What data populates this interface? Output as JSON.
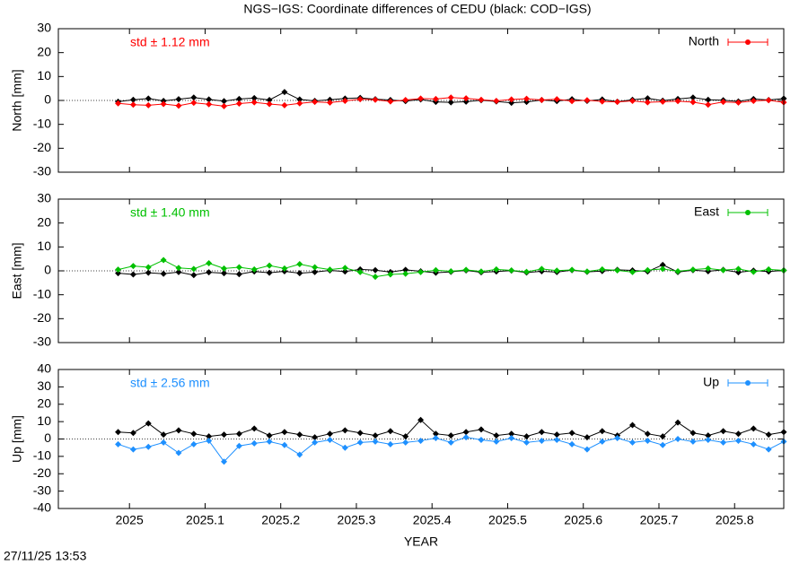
{
  "title": "NGS−IGS: Coordinate differences of CEDU (black: COD−IGS)",
  "footer": "27/11/25 13:53",
  "chart_data": [
    {
      "type": "line",
      "ylabel": "North [mm]",
      "annotation": "std ± 1.12 mm",
      "legend": "upper right",
      "xlim": [
        2024.906,
        2025.865
      ],
      "xticks": [
        2025,
        2025.1,
        2025.2,
        2025.3,
        2025.4,
        2025.5,
        2025.6,
        2025.7,
        2025.8
      ],
      "ylim": [
        -30,
        30
      ],
      "yticks": [
        -30,
        -20,
        -10,
        0,
        10,
        20,
        30
      ],
      "x": [
        2024.985,
        2025.005,
        2025.025,
        2025.045,
        2025.065,
        2025.085,
        2025.105,
        2025.125,
        2025.145,
        2025.165,
        2025.185,
        2025.205,
        2025.225,
        2025.245,
        2025.265,
        2025.285,
        2025.305,
        2025.325,
        2025.345,
        2025.365,
        2025.385,
        2025.405,
        2025.425,
        2025.445,
        2025.465,
        2025.485,
        2025.505,
        2025.525,
        2025.545,
        2025.565,
        2025.585,
        2025.605,
        2025.625,
        2025.645,
        2025.665,
        2025.685,
        2025.705,
        2025.725,
        2025.745,
        2025.765,
        2025.785,
        2025.805,
        2025.825,
        2025.845,
        2025.865
      ],
      "series": [
        {
          "color": "#000000",
          "values": [
            -0.5,
            0.3,
            0.8,
            -0.2,
            0.5,
            1.2,
            0.4,
            -0.3,
            0.6,
            1.0,
            0.2,
            3.5,
            0.4,
            -0.2,
            0.3,
            0.8,
            1.1,
            0.5,
            0.2,
            -0.3,
            0.4,
            -0.6,
            -0.8,
            -0.5,
            0.1,
            -0.4,
            -1.0,
            -0.6,
            0.2,
            -0.3,
            0.5,
            -0.2,
            0.4,
            -0.5,
            0.3,
            0.9,
            -0.1,
            0.6,
            1.2,
            0.3,
            0.1,
            -0.4,
            0.6,
            0.2,
            0.8
          ]
        },
        {
          "name": "North",
          "color": "#ff0000",
          "values": [
            -1.2,
            -1.8,
            -2.0,
            -1.5,
            -2.2,
            -1.0,
            -1.6,
            -2.4,
            -1.3,
            -0.8,
            -1.5,
            -2.0,
            -1.2,
            -0.6,
            -0.9,
            -0.2,
            0.5,
            0.3,
            -0.4,
            0.2,
            0.8,
            0.6,
            1.2,
            0.9,
            0.3,
            -0.2,
            0.4,
            0.7,
            0.2,
            0.5,
            -0.3,
            0.1,
            -0.4,
            -0.6,
            -0.2,
            -0.8,
            -0.5,
            -0.3,
            -0.7,
            -1.8,
            -0.6,
            -0.9,
            -0.2,
            0.1,
            -0.8
          ]
        }
      ]
    },
    {
      "type": "line",
      "ylabel": "East [mm]",
      "annotation": "std ± 1.40 mm",
      "legend": "upper right",
      "xlim": [
        2024.906,
        2025.865
      ],
      "xticks": [
        2025,
        2025.1,
        2025.2,
        2025.3,
        2025.4,
        2025.5,
        2025.6,
        2025.7,
        2025.8
      ],
      "ylim": [
        -30,
        30
      ],
      "yticks": [
        -30,
        -20,
        -10,
        0,
        10,
        20,
        30
      ],
      "x": [
        2024.985,
        2025.005,
        2025.025,
        2025.045,
        2025.065,
        2025.085,
        2025.105,
        2025.125,
        2025.145,
        2025.165,
        2025.185,
        2025.205,
        2025.225,
        2025.245,
        2025.265,
        2025.285,
        2025.305,
        2025.325,
        2025.345,
        2025.365,
        2025.385,
        2025.405,
        2025.425,
        2025.445,
        2025.465,
        2025.485,
        2025.505,
        2025.525,
        2025.545,
        2025.565,
        2025.585,
        2025.605,
        2025.625,
        2025.645,
        2025.665,
        2025.685,
        2025.705,
        2025.725,
        2025.745,
        2025.765,
        2025.785,
        2025.805,
        2025.825,
        2025.845,
        2025.865
      ],
      "series": [
        {
          "color": "#000000",
          "values": [
            -1.0,
            -1.5,
            -0.8,
            -1.2,
            -0.5,
            -1.8,
            -0.6,
            -1.0,
            -1.4,
            -0.3,
            -0.8,
            -0.2,
            -1.0,
            -0.5,
            0.2,
            -0.3,
            0.6,
            0.3,
            -0.5,
            0.4,
            -0.2,
            -0.8,
            -0.4,
            0.2,
            -0.6,
            -0.3,
            0.1,
            -0.7,
            -0.2,
            -0.5,
            0.3,
            -0.4,
            -0.1,
            0.4,
            0.2,
            -0.3,
            2.5,
            -0.5,
            0.3,
            -0.2,
            0.4,
            -0.6,
            0.1,
            -0.3,
            0.2
          ]
        },
        {
          "name": "East",
          "color": "#00c000",
          "values": [
            0.5,
            2.0,
            1.5,
            4.5,
            1.2,
            0.8,
            3.2,
            1.0,
            1.5,
            0.6,
            2.2,
            1.0,
            2.8,
            1.5,
            0.5,
            1.2,
            -0.5,
            -2.5,
            -1.5,
            -1.2,
            -0.5,
            0.3,
            -0.2,
            0.4,
            -0.3,
            0.6,
            0.2,
            -0.4,
            0.8,
            0.1,
            0.4,
            -0.3,
            0.6,
            0.2,
            -0.5,
            0.3,
            0.8,
            -0.2,
            0.5,
            1.0,
            0.3,
            0.8,
            -0.4,
            0.6,
            0.2
          ]
        }
      ]
    },
    {
      "type": "line",
      "ylabel": "Up [mm]",
      "xlabel": "YEAR",
      "annotation": "std ± 2.56 mm",
      "legend": "upper right",
      "xlim": [
        2024.906,
        2025.865
      ],
      "xticks": [
        2025,
        2025.1,
        2025.2,
        2025.3,
        2025.4,
        2025.5,
        2025.6,
        2025.7,
        2025.8
      ],
      "ylim": [
        -40,
        40
      ],
      "yticks": [
        -40,
        -30,
        -20,
        -10,
        0,
        10,
        20,
        30,
        40
      ],
      "x": [
        2024.985,
        2025.005,
        2025.025,
        2025.045,
        2025.065,
        2025.085,
        2025.105,
        2025.125,
        2025.145,
        2025.165,
        2025.185,
        2025.205,
        2025.225,
        2025.245,
        2025.265,
        2025.285,
        2025.305,
        2025.325,
        2025.345,
        2025.365,
        2025.385,
        2025.405,
        2025.425,
        2025.445,
        2025.465,
        2025.485,
        2025.505,
        2025.525,
        2025.545,
        2025.565,
        2025.585,
        2025.605,
        2025.625,
        2025.645,
        2025.665,
        2025.685,
        2025.705,
        2025.725,
        2025.745,
        2025.765,
        2025.785,
        2025.805,
        2025.825,
        2025.845,
        2025.865
      ],
      "series": [
        {
          "color": "#000000",
          "values": [
            4.0,
            3.5,
            9.0,
            2.5,
            5.0,
            3.0,
            1.5,
            2.5,
            3.0,
            6.0,
            2.0,
            4.0,
            2.5,
            1.0,
            3.0,
            5.0,
            3.5,
            2.0,
            4.5,
            1.5,
            11.0,
            3.0,
            2.0,
            4.0,
            5.5,
            2.0,
            3.0,
            1.5,
            4.0,
            2.5,
            3.5,
            1.0,
            4.5,
            2.0,
            8.0,
            3.0,
            1.5,
            9.5,
            3.5,
            2.0,
            4.5,
            3.0,
            6.0,
            2.5,
            4.0
          ]
        },
        {
          "name": "Up",
          "color": "#1e90ff",
          "values": [
            -3.0,
            -6.0,
            -4.5,
            -2.0,
            -8.0,
            -3.0,
            -1.0,
            -13.0,
            -4.0,
            -2.5,
            -1.5,
            -3.5,
            -9.0,
            -2.0,
            -0.5,
            -5.0,
            -2.0,
            -1.5,
            -3.0,
            -2.0,
            -1.0,
            0.5,
            -2.0,
            1.0,
            -0.5,
            -1.5,
            0.5,
            -2.0,
            -1.0,
            -0.5,
            -3.0,
            -6.0,
            -1.5,
            0.5,
            -2.0,
            -1.0,
            -3.5,
            0.0,
            -1.5,
            -0.5,
            -2.0,
            -1.0,
            -3.0,
            -6.0,
            -1.5
          ]
        }
      ]
    }
  ]
}
